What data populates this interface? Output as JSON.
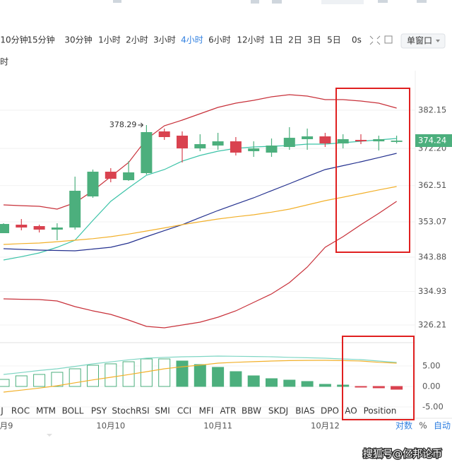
{
  "toolbar": {
    "intervals": [
      "10分钟",
      "15分钟",
      "30分钟",
      "1小时",
      "2小时",
      "3小时",
      "4小时",
      "6小时",
      "12小时",
      "1日",
      "2日",
      "3日",
      "5日",
      "0s"
    ],
    "active": 6,
    "window_mode": "单窗口"
  },
  "side_label": "时",
  "chart_data": [
    {
      "type": "candlestick",
      "categories": [
        "月9",
        null,
        null,
        null,
        null,
        null,
        "10月10",
        null,
        null,
        null,
        null,
        null,
        "10月11",
        null,
        null,
        null,
        null,
        null,
        "10月12",
        null,
        null,
        null,
        null
      ],
      "open": [
        350.13,
        352.34,
        351.97,
        351.05,
        351.6,
        359.7,
        366.14,
        363.93,
        365.77,
        376.63,
        375.53,
        372.21,
        372.95,
        374.05,
        371.48,
        371.11,
        372.58,
        374.61,
        375.34,
        373.5,
        374.42,
        374.05,
        373.9
      ],
      "high": [
        352.71,
        353.81,
        352.34,
        352.71,
        364.85,
        366.69,
        367.06,
        368.9,
        378.29,
        377.37,
        376.63,
        375.89,
        376.26,
        375.16,
        374.05,
        374.79,
        377.73,
        377.37,
        376.26,
        375.89,
        375.89,
        375.53,
        375.53
      ],
      "low": [
        350.13,
        350.87,
        350.31,
        348.29,
        351.05,
        359.33,
        363.38,
        363.75,
        365.4,
        374.42,
        368.53,
        371.48,
        371.84,
        370.37,
        370.0,
        370.0,
        371.84,
        371.84,
        372.58,
        372.21,
        373.32,
        371.66,
        373.5
      ],
      "close": [
        352.52,
        351.6,
        351.05,
        351.6,
        361.17,
        366.14,
        364.3,
        365.96,
        376.45,
        375.16,
        372.21,
        373.32,
        374.05,
        371.11,
        372.21,
        372.95,
        374.97,
        375.34,
        373.5,
        374.61,
        374.05,
        374.61,
        374.24
      ],
      "up_color": "#4caf7d",
      "down_color": "#d9424f",
      "series": [
        {
          "color": "#c8313a",
          "values": [
            357.49,
            357.3,
            357.12,
            356.39,
            358.04,
            361.17,
            364.85,
            368.53,
            374.61,
            378.1,
            379.57,
            381.23,
            382.89,
            383.99,
            384.73,
            385.65,
            386.2,
            385.83,
            384.91,
            384.91,
            384.54,
            383.99,
            382.7
          ]
        },
        {
          "color": "#c8313a",
          "values": [
            333.02,
            332.9,
            332.83,
            332.46,
            330.99,
            329.89,
            328.97,
            327.49,
            325.84,
            325.47,
            326.21,
            326.94,
            328.23,
            329.89,
            332.09,
            334.3,
            337.25,
            341.3,
            346.45,
            349.21,
            352.34,
            355.28,
            358.41
          ]
        },
        {
          "color": "#3cc3a8",
          "values": [
            343.14,
            344.0,
            344.98,
            346.45,
            348.29,
            353.44,
            358.41,
            361.91,
            365.22,
            366.69,
            368.9,
            370.37,
            371.48,
            372.21,
            372.58,
            372.76,
            372.95,
            373.32,
            373.32,
            373.69,
            374.05,
            374.42,
            374.79
          ]
        },
        {
          "color": "#24318f",
          "values": [
            346.08,
            345.9,
            345.71,
            345.62,
            345.53,
            346.0,
            346.45,
            347.55,
            349.21,
            350.8,
            352.34,
            354.2,
            356.02,
            357.7,
            359.33,
            361.2,
            363.01,
            364.9,
            366.69,
            367.7,
            368.72,
            369.8,
            370.92
          ]
        },
        {
          "color": "#f2b02a",
          "values": [
            347.18,
            347.4,
            347.55,
            347.9,
            348.29,
            348.7,
            349.21,
            349.9,
            350.68,
            351.5,
            352.34,
            353.1,
            353.81,
            354.4,
            354.91,
            355.6,
            356.39,
            357.5,
            358.59,
            359.5,
            360.43,
            361.4,
            362.28
          ]
        }
      ],
      "ylim": [
        322.16,
        392.46
      ],
      "yticks": [
        382.15,
        {
          "value": 372.2,
          "label": "372.20"
        },
        362.51,
        353.07,
        343.88,
        334.93,
        326.21
      ],
      "grid": true
    },
    {
      "type": "bar",
      "values": [
        1.72,
        2.59,
        2.93,
        3.45,
        4.31,
        5.17,
        5.52,
        6.03,
        6.72,
        6.72,
        6.21,
        5.34,
        4.66,
        3.62,
        2.59,
        1.9,
        1.55,
        1.21,
        0.52,
        0.34,
        -0.17,
        -0.34,
        -0.69
      ],
      "up_color": "#4caf7d",
      "down_color": "#d9424f",
      "series": [
        {
          "color": "#7fd6c4",
          "values": [
            2.93,
            3.4,
            3.9,
            4.31,
            4.9,
            5.52,
            6.0,
            6.5,
            6.9,
            7.1,
            7.24,
            7.3,
            7.41,
            7.35,
            7.3,
            7.24,
            7.1,
            7.0,
            6.9,
            6.7,
            6.55,
            6.2,
            5.86
          ]
        },
        {
          "color": "#f2b02a",
          "values": [
            -1.38,
            -0.9,
            -0.4,
            0.17,
            0.9,
            1.6,
            2.24,
            2.9,
            3.6,
            4.31,
            4.8,
            5.2,
            5.69,
            5.9,
            6.05,
            6.21,
            6.3,
            6.35,
            6.38,
            6.3,
            6.21,
            5.9,
            5.69
          ]
        }
      ],
      "ylim": [
        -7.76,
        10.34
      ],
      "yticks": [
        {
          "value": 5,
          "label": "5.00"
        },
        {
          "value": 0,
          "label": "0.00"
        },
        {
          "value": -5,
          "label": "-5.00"
        }
      ]
    }
  ],
  "indicator_tabs": [
    "J",
    "ROC",
    "MTM",
    "BOLL",
    "PSY",
    "StochRSI",
    "SMI",
    "CCI",
    "MFI",
    "ATR",
    "BBW",
    "SKDJ",
    "BIAS",
    "DPO",
    "AO",
    "Position"
  ],
  "axis_options": [
    "对数",
    "%",
    "自动"
  ],
  "watermark": "搜狐号@亿邦论币"
}
